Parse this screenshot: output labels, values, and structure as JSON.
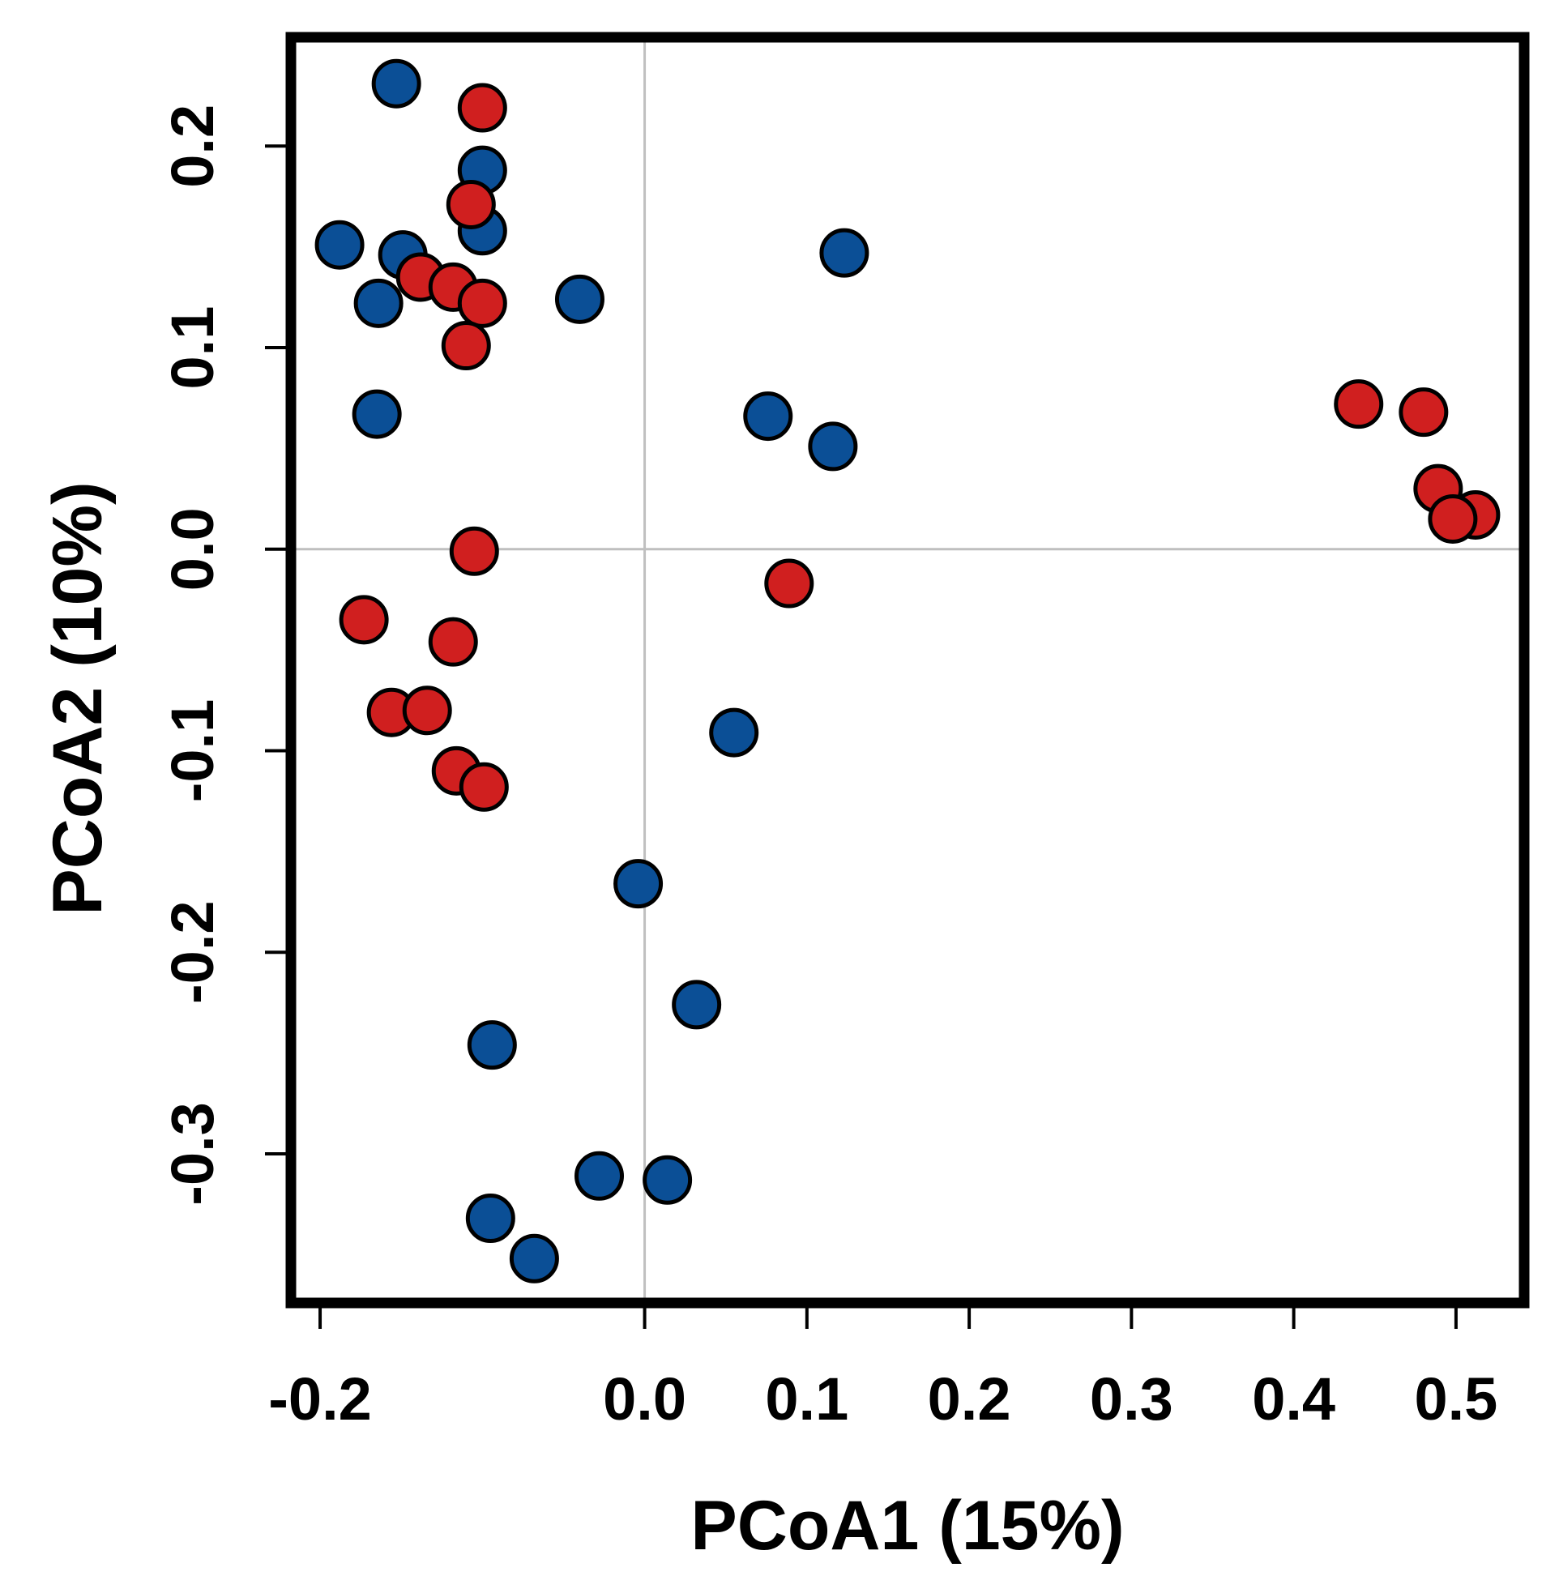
{
  "chart_data": {
    "type": "scatter",
    "title": "",
    "xlabel": "PCoA1 (15%)",
    "ylabel": "PCoA2 (10%)",
    "xlim": [
      -0.218,
      0.542
    ],
    "ylim": [
      -0.374,
      0.254
    ],
    "xticks": [
      -0.2,
      0.0,
      0.1,
      0.2,
      0.3,
      0.4,
      0.5
    ],
    "xtick_labels": [
      "-0.2",
      "0.0",
      "0.1",
      "0.2",
      "0.3",
      "0.4",
      "0.5"
    ],
    "yticks": [
      -0.3,
      -0.2,
      -0.1,
      0.0,
      0.1,
      0.2
    ],
    "ytick_labels": [
      "-0.3",
      "-0.2",
      "-0.1",
      "0.0",
      "0.1",
      "0.2"
    ],
    "reference_lines": {
      "x": 0,
      "y": 0,
      "color": "#bfbfbf"
    },
    "grid": false,
    "legend": null,
    "series": [
      {
        "name": "blue group",
        "color": "#0b4f96",
        "points": [
          {
            "x": -0.153,
            "y": 0.231
          },
          {
            "x": -0.1,
            "y": 0.188
          },
          {
            "x": -0.1,
            "y": 0.158
          },
          {
            "x": -0.188,
            "y": 0.151
          },
          {
            "x": -0.149,
            "y": 0.146
          },
          {
            "x": -0.164,
            "y": 0.122
          },
          {
            "x": -0.04,
            "y": 0.124
          },
          {
            "x": -0.165,
            "y": 0.067
          },
          {
            "x": 0.123,
            "y": 0.147
          },
          {
            "x": 0.076,
            "y": 0.066
          },
          {
            "x": 0.116,
            "y": 0.051
          },
          {
            "x": 0.055,
            "y": -0.091
          },
          {
            "x": -0.004,
            "y": -0.166
          },
          {
            "x": 0.032,
            "y": -0.226
          },
          {
            "x": -0.094,
            "y": -0.246
          },
          {
            "x": -0.028,
            "y": -0.311
          },
          {
            "x": 0.014,
            "y": -0.313
          },
          {
            "x": -0.095,
            "y": -0.332
          },
          {
            "x": -0.068,
            "y": -0.352
          }
        ]
      },
      {
        "name": "red group",
        "color": "#d01f1f",
        "points": [
          {
            "x": -0.1,
            "y": 0.219
          },
          {
            "x": -0.107,
            "y": 0.171
          },
          {
            "x": -0.138,
            "y": 0.135
          },
          {
            "x": -0.118,
            "y": 0.13
          },
          {
            "x": -0.1,
            "y": 0.122
          },
          {
            "x": -0.11,
            "y": 0.101
          },
          {
            "x": -0.105,
            "y": -0.001
          },
          {
            "x": 0.089,
            "y": -0.017
          },
          {
            "x": -0.173,
            "y": -0.035
          },
          {
            "x": -0.118,
            "y": -0.046
          },
          {
            "x": -0.156,
            "y": -0.081
          },
          {
            "x": -0.134,
            "y": -0.08
          },
          {
            "x": -0.116,
            "y": -0.11
          },
          {
            "x": -0.099,
            "y": -0.118
          },
          {
            "x": 0.44,
            "y": 0.072
          },
          {
            "x": 0.48,
            "y": 0.068
          },
          {
            "x": 0.489,
            "y": 0.03
          },
          {
            "x": 0.512,
            "y": 0.017
          },
          {
            "x": 0.498,
            "y": 0.015
          }
        ]
      }
    ]
  }
}
